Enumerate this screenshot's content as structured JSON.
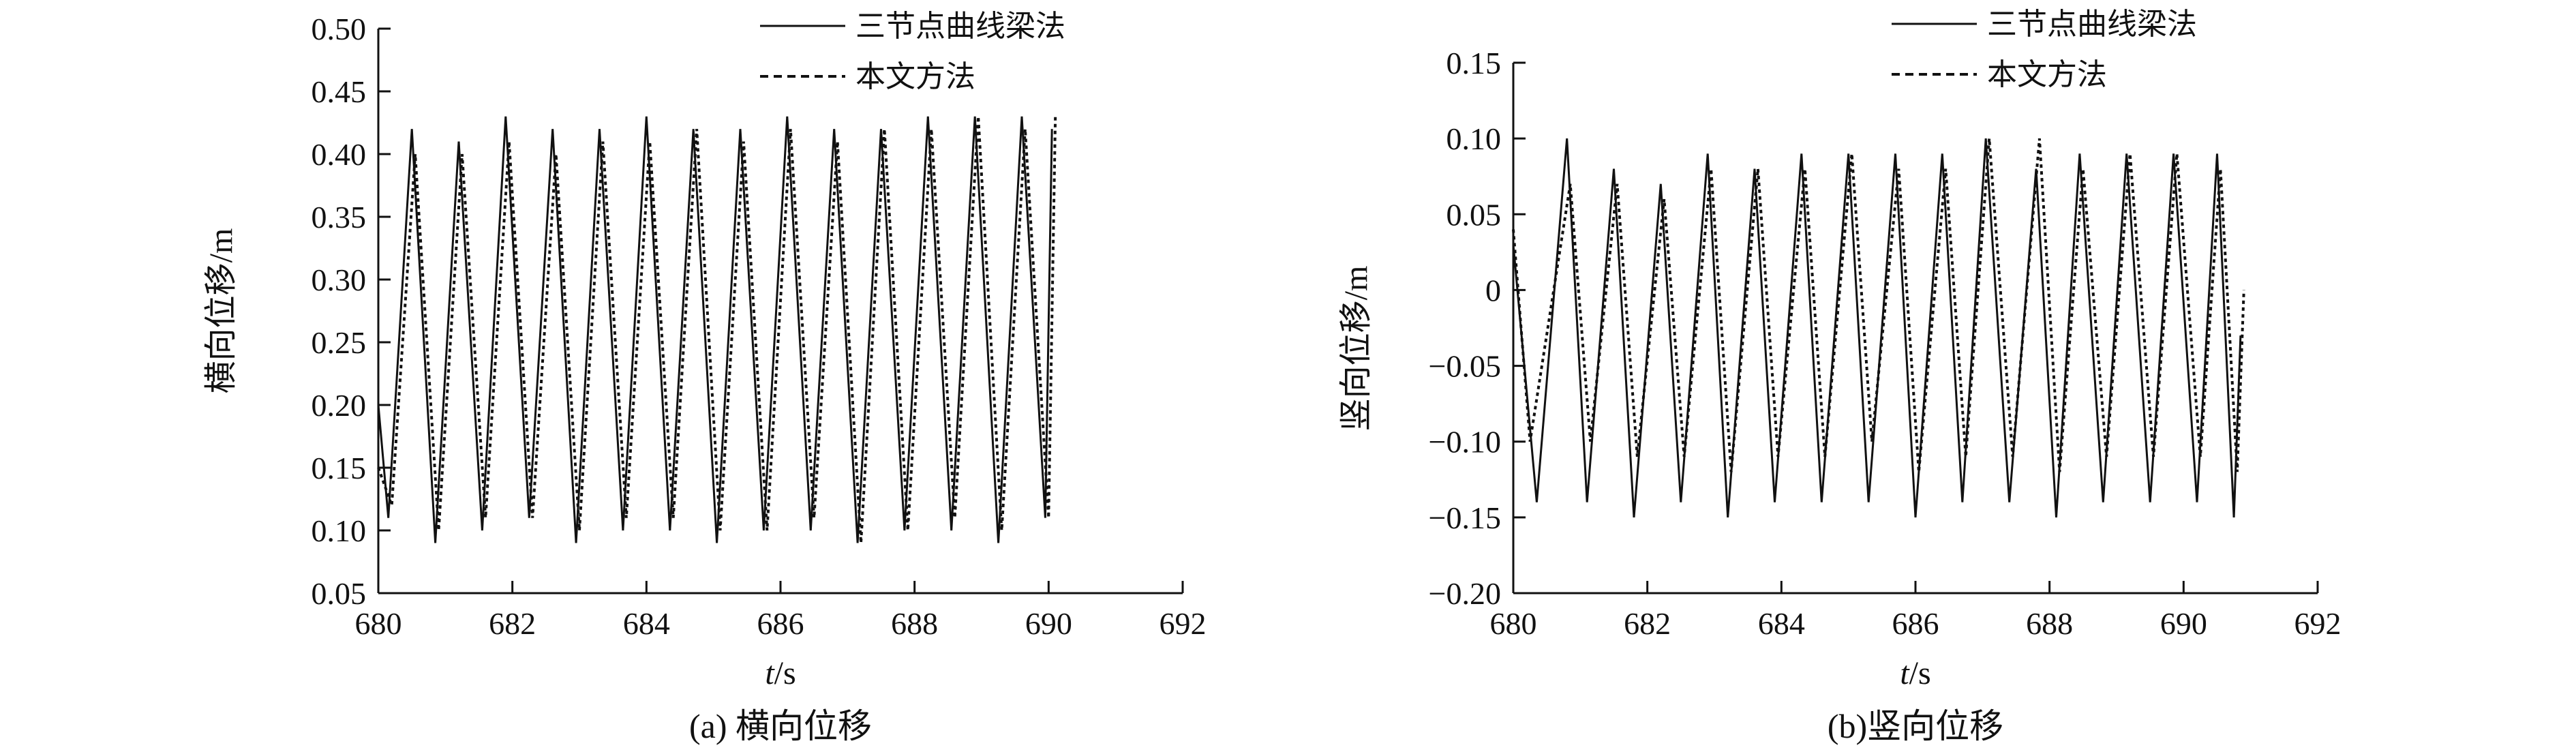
{
  "chart_data": [
    {
      "type": "line",
      "caption": "(a) 横向位移",
      "xlabel": "t/s",
      "ylabel": "横向位移/m",
      "xlim": [
        680,
        692
      ],
      "ylim": [
        0.05,
        0.5
      ],
      "xticks": [
        "680",
        "682",
        "684",
        "686",
        "688",
        "690",
        "692"
      ],
      "yticks": [
        "0.05",
        "0.10",
        "0.15",
        "0.20",
        "0.25",
        "0.30",
        "0.35",
        "0.40",
        "0.45",
        "0.50"
      ],
      "grid": false,
      "legend_position": "top-right",
      "series": [
        {
          "name": "三节点曲线梁法",
          "style": "solid",
          "x": [
            680.0,
            680.15,
            680.5,
            680.85,
            681.2,
            681.55,
            681.9,
            682.25,
            682.6,
            682.95,
            683.3,
            683.65,
            684.0,
            684.35,
            684.7,
            685.05,
            685.4,
            685.75,
            686.1,
            686.45,
            686.8,
            687.15,
            687.5,
            687.85,
            688.2,
            688.55,
            688.9,
            689.25,
            689.6,
            689.95,
            690.05
          ],
          "y": [
            0.2,
            0.11,
            0.42,
            0.09,
            0.41,
            0.1,
            0.43,
            0.11,
            0.42,
            0.09,
            0.42,
            0.1,
            0.43,
            0.1,
            0.42,
            0.09,
            0.42,
            0.1,
            0.43,
            0.1,
            0.42,
            0.09,
            0.42,
            0.1,
            0.43,
            0.1,
            0.43,
            0.09,
            0.43,
            0.11,
            0.42
          ]
        },
        {
          "name": "本文方法",
          "style": "dashed",
          "x": [
            680.0,
            680.2,
            680.55,
            680.9,
            681.25,
            681.6,
            681.95,
            682.3,
            682.65,
            683.0,
            683.35,
            683.7,
            684.05,
            684.4,
            684.75,
            685.1,
            685.45,
            685.8,
            686.15,
            686.5,
            686.85,
            687.2,
            687.55,
            687.9,
            688.25,
            688.6,
            688.95,
            689.3,
            689.65,
            690.0,
            690.1
          ],
          "y": [
            0.15,
            0.12,
            0.4,
            0.1,
            0.4,
            0.11,
            0.41,
            0.11,
            0.4,
            0.1,
            0.41,
            0.11,
            0.41,
            0.11,
            0.42,
            0.1,
            0.41,
            0.1,
            0.42,
            0.11,
            0.41,
            0.09,
            0.42,
            0.1,
            0.42,
            0.11,
            0.43,
            0.1,
            0.42,
            0.11,
            0.43
          ]
        }
      ]
    },
    {
      "type": "line",
      "caption": "(b)竖向位移",
      "xlabel": "t/s",
      "ylabel": "竖向位移/m",
      "xlim": [
        680,
        692
      ],
      "ylim": [
        -0.2,
        0.15
      ],
      "xticks": [
        "680",
        "682",
        "684",
        "686",
        "688",
        "690",
        "692"
      ],
      "yticks": [
        "−0.20",
        "−0.15",
        "−0.10",
        "−0.05",
        "0",
        "0.05",
        "0.10",
        "0.15"
      ],
      "grid": false,
      "legend_position": "top-right",
      "series": [
        {
          "name": "三节点曲线梁法",
          "style": "solid",
          "x": [
            680.0,
            680.35,
            680.8,
            681.1,
            681.5,
            681.8,
            682.2,
            682.5,
            682.9,
            683.2,
            683.6,
            683.9,
            684.3,
            684.6,
            685.0,
            685.3,
            685.7,
            686.0,
            686.4,
            686.7,
            687.05,
            687.4,
            687.8,
            688.1,
            688.45,
            688.8,
            689.15,
            689.5,
            689.85,
            690.2,
            690.5,
            690.75,
            690.85
          ],
          "y": [
            0.03,
            -0.14,
            0.1,
            -0.14,
            0.08,
            -0.15,
            0.07,
            -0.14,
            0.09,
            -0.15,
            0.08,
            -0.14,
            0.09,
            -0.14,
            0.09,
            -0.14,
            0.09,
            -0.15,
            0.09,
            -0.14,
            0.1,
            -0.14,
            0.08,
            -0.15,
            0.09,
            -0.14,
            0.09,
            -0.14,
            0.09,
            -0.14,
            0.09,
            -0.15,
            -0.03
          ]
        },
        {
          "name": "本文方法",
          "style": "dashed",
          "x": [
            680.0,
            680.25,
            680.85,
            681.15,
            681.55,
            681.85,
            682.25,
            682.55,
            682.95,
            683.25,
            683.65,
            683.95,
            684.35,
            684.65,
            685.05,
            685.35,
            685.75,
            686.05,
            686.45,
            686.75,
            687.1,
            687.45,
            687.85,
            688.15,
            688.5,
            688.85,
            689.2,
            689.55,
            689.9,
            690.25,
            690.55,
            690.8,
            690.9
          ],
          "y": [
            0.04,
            -0.1,
            0.07,
            -0.1,
            0.07,
            -0.11,
            0.06,
            -0.11,
            0.08,
            -0.12,
            0.08,
            -0.11,
            0.08,
            -0.11,
            0.09,
            -0.1,
            0.08,
            -0.12,
            0.08,
            -0.11,
            0.1,
            -0.11,
            0.1,
            -0.12,
            0.08,
            -0.11,
            0.09,
            -0.11,
            0.09,
            -0.11,
            0.08,
            -0.12,
            0.0
          ]
        }
      ]
    }
  ]
}
